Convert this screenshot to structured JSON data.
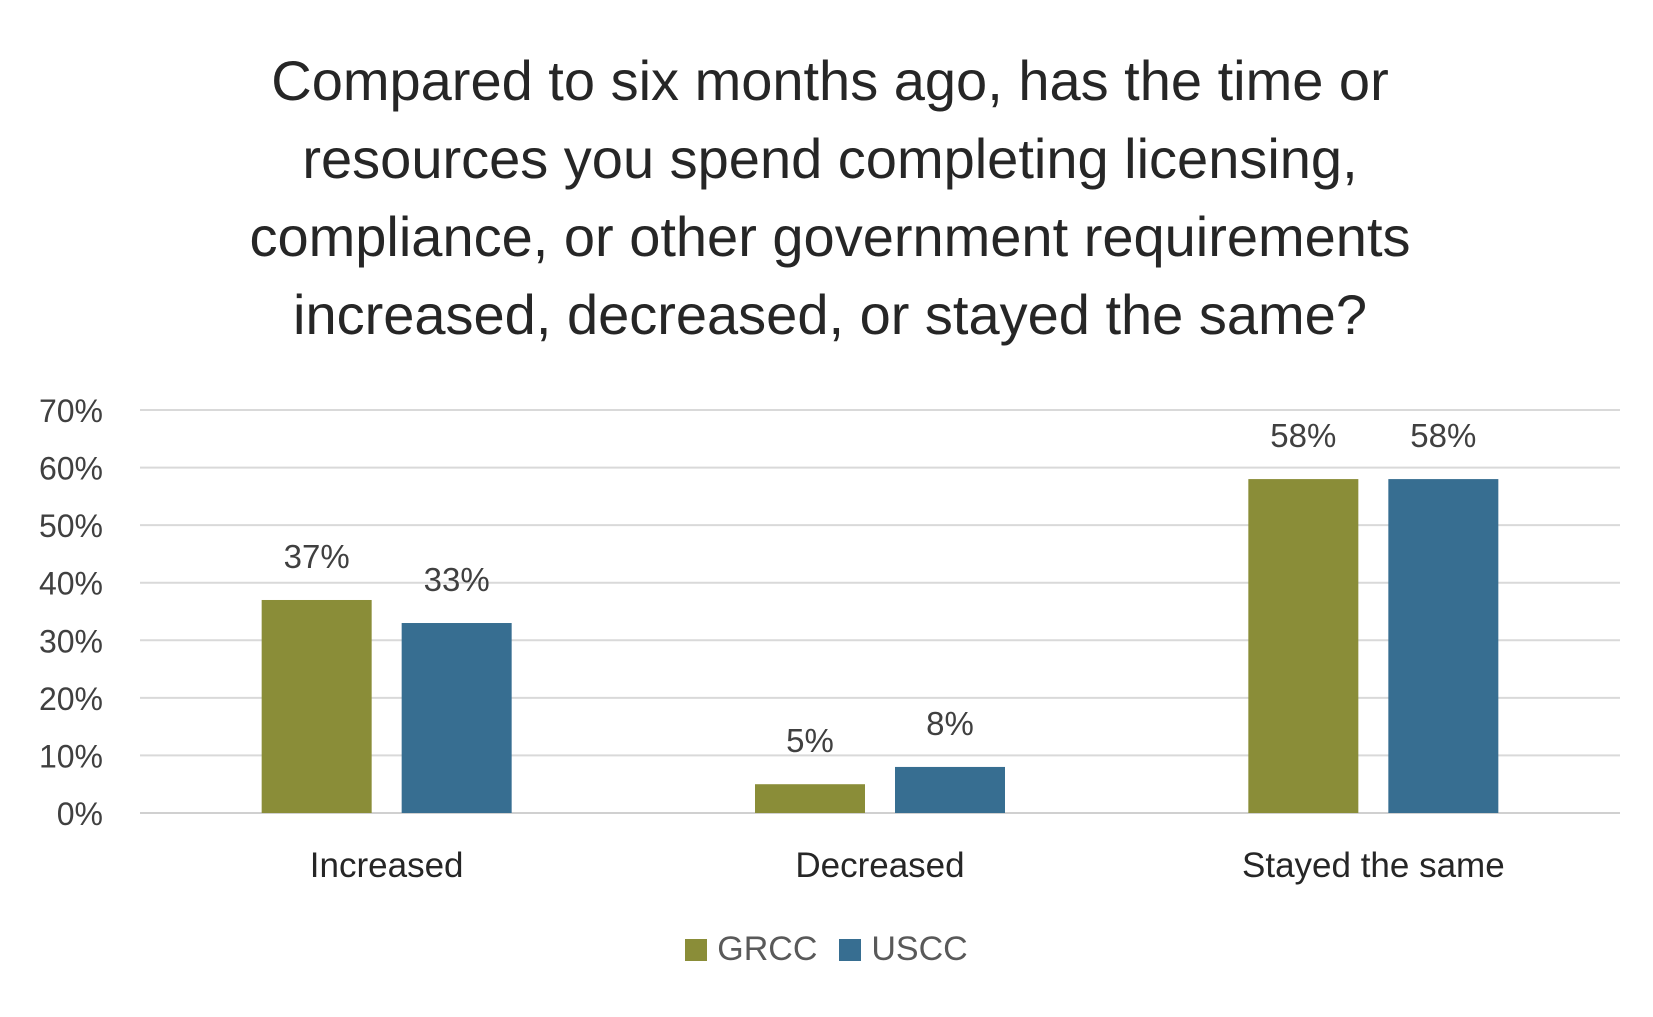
{
  "chart_data": {
    "type": "bar",
    "title_lines": [
      "Compared to six months ago, has the time or",
      "resources you spend completing licensing,",
      "compliance, or other government requirements",
      "increased, decreased, or stayed the same?"
    ],
    "categories": [
      "Increased",
      "Decreased",
      "Stayed the same"
    ],
    "series": [
      {
        "name": "GRCC",
        "values": [
          37,
          5,
          58
        ],
        "labels": [
          "37%",
          "5%",
          "58%"
        ],
        "color": "#8a8d38"
      },
      {
        "name": "USCC",
        "values": [
          33,
          8,
          58
        ],
        "labels": [
          "33%",
          "8%",
          "58%"
        ],
        "color": "#376e91"
      }
    ],
    "ylim": [
      0,
      70
    ],
    "yticks": [
      0,
      10,
      20,
      30,
      40,
      50,
      60,
      70
    ],
    "ytick_labels": [
      "0%",
      "10%",
      "20%",
      "30%",
      "40%",
      "50%",
      "60%",
      "70%"
    ],
    "grid": true,
    "legend": "bottom-center",
    "xlabel": "",
    "ylabel": ""
  }
}
